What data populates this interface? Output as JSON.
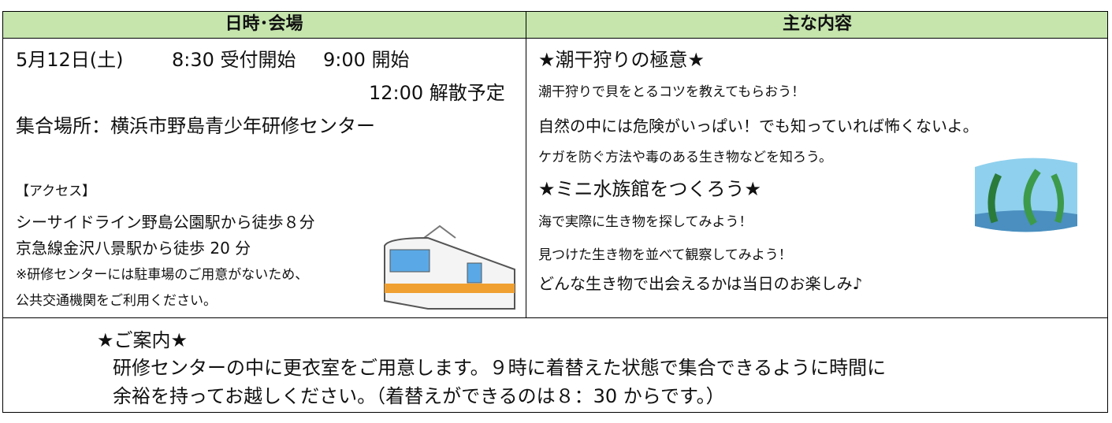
{
  "table": {
    "header": [
      "日時･会場",
      "主な内容"
    ],
    "schedule": {
      "date": "5月12日(土)",
      "reception": "8:30 受付開始",
      "start": "9:00 開始",
      "end": "12:00 解散予定",
      "meeting": "集合場所：横浜市野島青少年研修センター",
      "access_title": "【アクセス】",
      "access": [
        "シーサイドライン野島公園駅から徒歩８分",
        "京急線金沢八景駅から徒歩 20 分"
      ],
      "note": [
        "※研修センターには駐車場のご用意がないため、",
        "公共交通機関をご利用ください。"
      ]
    },
    "content": {
      "sections": [
        {
          "title": "★潮干狩りの極意★",
          "lines": [
            "潮干狩りで貝をとるコツを教えてもらおう！",
            "自然の中には危険がいっぱい！でも知っていれば怖くないよ。",
            "ケガを防ぐ方法や毒のある生き物などを知ろう。"
          ]
        },
        {
          "title": "★ミニ水族館をつくろう★",
          "lines": [
            "海で実際に生き物を探してみよう！",
            "見つけた生き物を並べて観察してみよう！",
            "どんな生き物で出会えるかは当日のお楽しみ♪"
          ]
        }
      ]
    },
    "notice": {
      "title": "★ご案内★",
      "lines": [
        "研修センターの中に更衣室をご用意します。９時に着替えた状態で集合できるように時間に",
        "余裕を持ってお越しください。（着替えができるのは８：30 からです。）"
      ]
    }
  }
}
